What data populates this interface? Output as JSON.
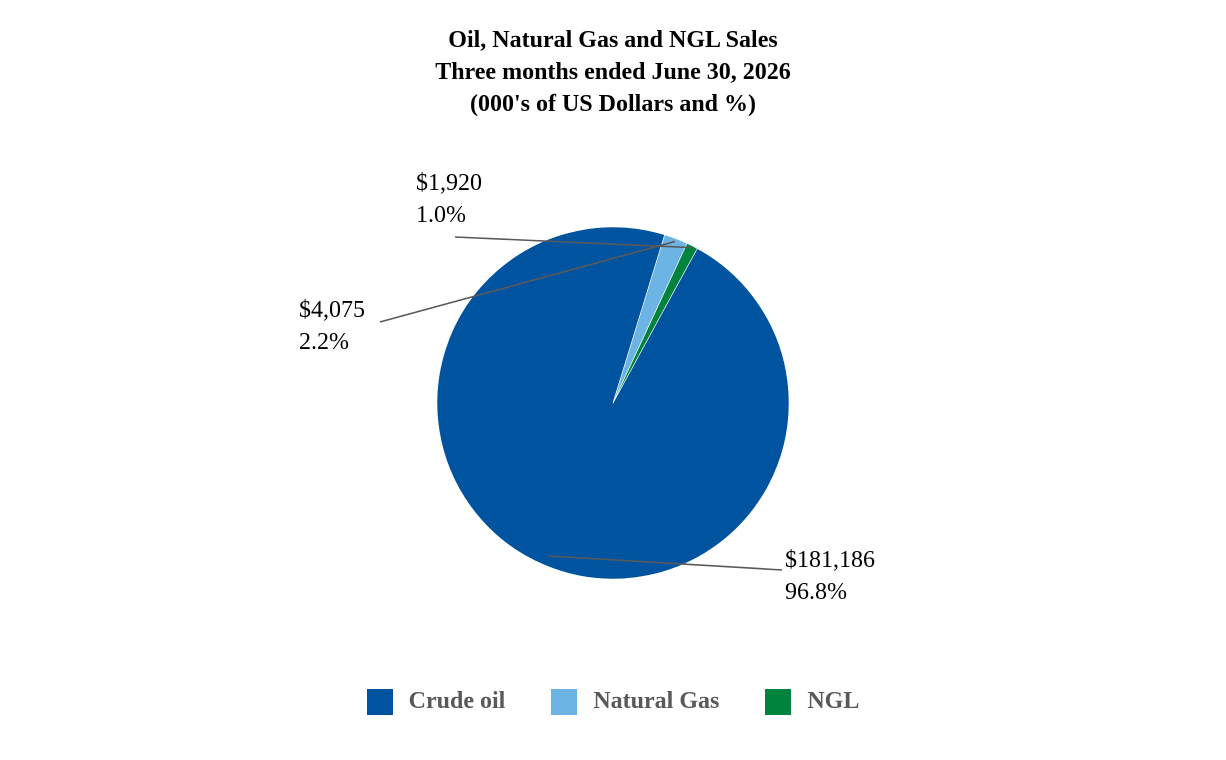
{
  "chart_data": {
    "type": "pie",
    "title": [
      "Oil, Natural Gas and NGL Sales",
      "Three months ended June 30, 2026",
      "(000's of US Dollars and %)"
    ],
    "slices": [
      {
        "name": "Crude oil",
        "value": 181186,
        "value_label": "$181,186",
        "percent_label": "96.8%",
        "color": "#00539F"
      },
      {
        "name": "Natural Gas",
        "value": 4075,
        "value_label": "$4,075",
        "percent_label": "2.2%",
        "color": "#6CB4E4"
      },
      {
        "name": "NGL",
        "value": 1920,
        "value_label": "$1,920",
        "percent_label": "1.0%",
        "color": "#00843D"
      }
    ],
    "legend": {
      "placement": "bottom"
    },
    "leader_line_color": "#595959"
  }
}
